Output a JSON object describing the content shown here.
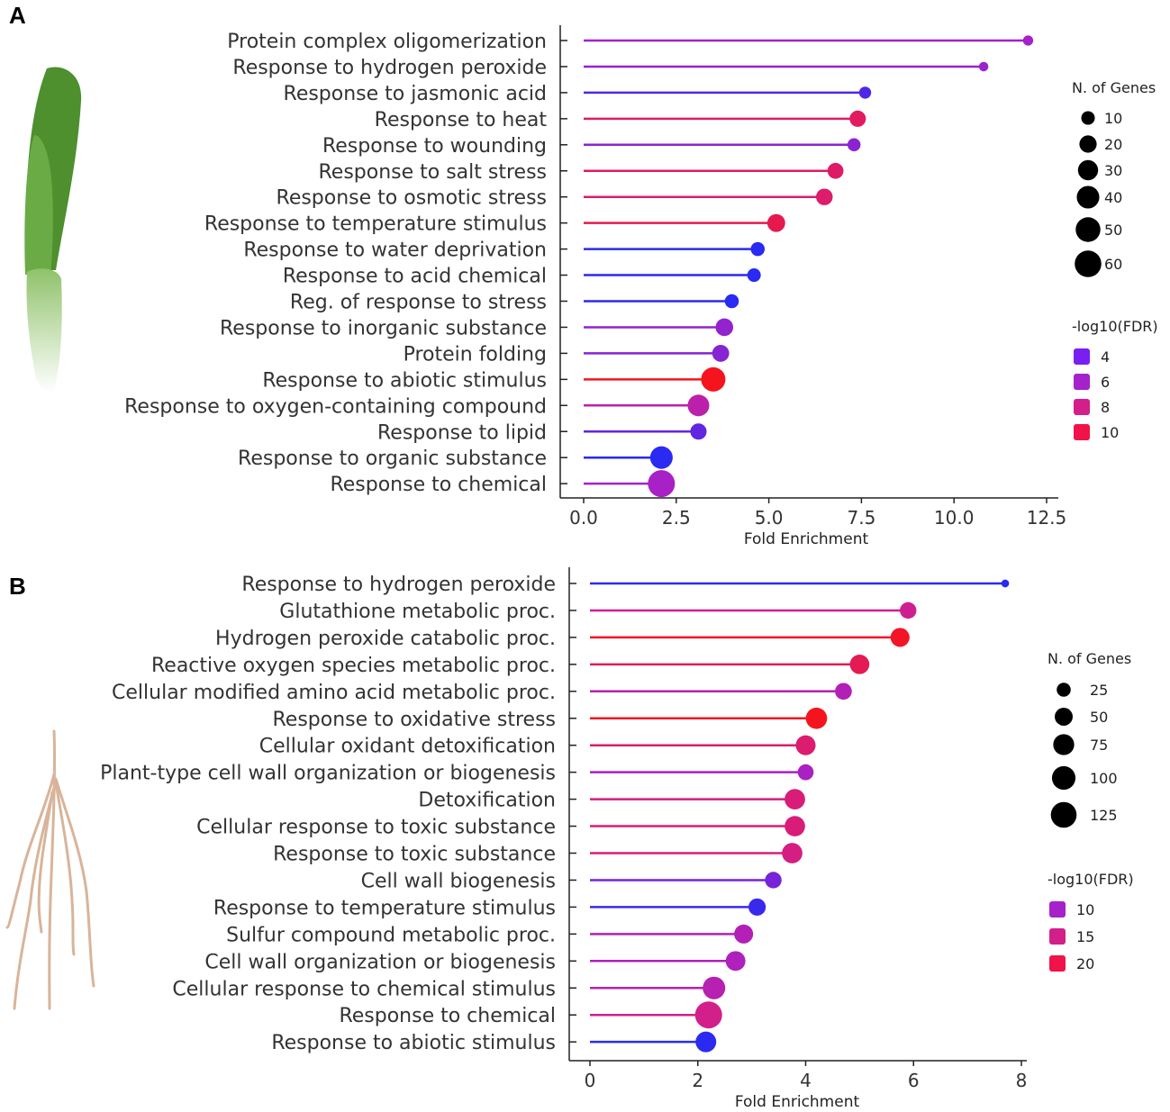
{
  "chart_data": [
    {
      "panel": "A",
      "type": "lollipop",
      "xlabel": "Fold Enrichment",
      "xticks": [
        "0.0",
        "2.5",
        "5.0",
        "7.5",
        "10.0",
        "12.5"
      ],
      "xtick_values": [
        0,
        2.5,
        5,
        7.5,
        10,
        12.5
      ],
      "xlim": [
        0,
        12.5
      ],
      "terms": [
        {
          "label": "Protein complex oligomerization",
          "value": 12.0,
          "genes": 4,
          "fdr": 6.0
        },
        {
          "label": "Response to hydrogen peroxide",
          "value": 10.8,
          "genes": 3,
          "fdr": 5.8
        },
        {
          "label": "Response to jasmonic acid",
          "value": 7.6,
          "genes": 7,
          "fdr": 4.6
        },
        {
          "label": "Response to heat",
          "value": 7.4,
          "genes": 17,
          "fdr": 9.0
        },
        {
          "label": "Response to wounding",
          "value": 7.3,
          "genes": 9,
          "fdr": 5.6
        },
        {
          "label": "Response to salt stress",
          "value": 6.8,
          "genes": 16,
          "fdr": 8.8
        },
        {
          "label": "Response to osmotic stress",
          "value": 6.5,
          "genes": 18,
          "fdr": 8.7
        },
        {
          "label": "Response to temperature stimulus",
          "value": 5.2,
          "genes": 22,
          "fdr": 9.4
        },
        {
          "label": "Response to water deprivation",
          "value": 4.7,
          "genes": 11,
          "fdr": 3.9
        },
        {
          "label": "Response to acid chemical",
          "value": 4.6,
          "genes": 10,
          "fdr": 3.8
        },
        {
          "label": "Reg. of response to stress",
          "value": 4.0,
          "genes": 11,
          "fdr": 3.6
        },
        {
          "label": "Response to inorganic substance",
          "value": 3.8,
          "genes": 21,
          "fdr": 5.7
        },
        {
          "label": "Protein folding",
          "value": 3.7,
          "genes": 19,
          "fdr": 5.5
        },
        {
          "label": "Response to abiotic stimulus",
          "value": 3.5,
          "genes": 48,
          "fdr": 10.6
        },
        {
          "label": "Response to oxygen-containing compound",
          "value": 3.1,
          "genes": 36,
          "fdr": 7.0
        },
        {
          "label": "Response to lipid",
          "value": 3.1,
          "genes": 17,
          "fdr": 4.9
        },
        {
          "label": "Response to organic substance",
          "value": 2.1,
          "genes": 40,
          "fdr": 2.5
        },
        {
          "label": "Response to chemical",
          "value": 2.1,
          "genes": 62,
          "fdr": 6.1
        }
      ],
      "size_legend": {
        "title": "N. of Genes",
        "values": [
          10,
          20,
          30,
          40,
          50,
          60
        ]
      },
      "color_legend": {
        "title": "-log10(FDR)",
        "entries": [
          {
            "label": "4",
            "color": "#7a1ff2"
          },
          {
            "label": "6",
            "color": "#a521c9"
          },
          {
            "label": "8",
            "color": "#d21f8a"
          },
          {
            "label": "10",
            "color": "#f1124a"
          }
        ]
      }
    },
    {
      "panel": "B",
      "type": "lollipop",
      "xlabel": "Fold Enrichment",
      "xticks": [
        "0",
        "2",
        "4",
        "6",
        "8"
      ],
      "xtick_values": [
        0,
        2,
        4,
        6,
        8
      ],
      "xlim": [
        0,
        8
      ],
      "terms": [
        {
          "label": "Response to hydrogen peroxide",
          "value": 7.7,
          "genes": 3,
          "fdr": 6.0
        },
        {
          "label": "Glutathione metabolic proc.",
          "value": 5.9,
          "genes": 40,
          "fdr": 14.5
        },
        {
          "label": "Hydrogen peroxide catabolic proc.",
          "value": 5.75,
          "genes": 58,
          "fdr": 20.5
        },
        {
          "label": "Reactive oxygen species metabolic proc.",
          "value": 5.0,
          "genes": 62,
          "fdr": 18.0
        },
        {
          "label": "Cellular modified amino acid metabolic proc.",
          "value": 4.7,
          "genes": 42,
          "fdr": 11.5
        },
        {
          "label": "Response to oxidative stress",
          "value": 4.2,
          "genes": 78,
          "fdr": 21.0
        },
        {
          "label": "Cellular oxidant detoxification",
          "value": 4.0,
          "genes": 65,
          "fdr": 16.5
        },
        {
          "label": "Plant-type cell wall organization or biogenesis",
          "value": 4.0,
          "genes": 36,
          "fdr": 10.5
        },
        {
          "label": "Detoxification",
          "value": 3.8,
          "genes": 70,
          "fdr": 16.0
        },
        {
          "label": "Cellular response to toxic substance",
          "value": 3.8,
          "genes": 70,
          "fdr": 16.0
        },
        {
          "label": "Response to toxic substance",
          "value": 3.75,
          "genes": 70,
          "fdr": 15.5
        },
        {
          "label": "Cell wall biogenesis",
          "value": 3.4,
          "genes": 40,
          "fdr": 8.5
        },
        {
          "label": "Response to temperature stimulus",
          "value": 3.1,
          "genes": 45,
          "fdr": 6.5
        },
        {
          "label": "Sulfur compound metabolic proc.",
          "value": 2.85,
          "genes": 58,
          "fdr": 11.5
        },
        {
          "label": "Cell wall organization or biogenesis",
          "value": 2.7,
          "genes": 64,
          "fdr": 11.0
        },
        {
          "label": "Cellular response to chemical stimulus",
          "value": 2.3,
          "genes": 90,
          "fdr": 12.0
        },
        {
          "label": "Response to chemical",
          "value": 2.2,
          "genes": 140,
          "fdr": 15.0
        },
        {
          "label": "Response to abiotic stimulus",
          "value": 2.15,
          "genes": 72,
          "fdr": 6.0
        }
      ],
      "size_legend": {
        "title": "N. of Genes",
        "values": [
          25,
          50,
          75,
          100,
          125
        ]
      },
      "color_legend": {
        "title": "-log10(FDR)",
        "entries": [
          {
            "label": "10",
            "color": "#a521c9"
          },
          {
            "label": "15",
            "color": "#d21f8a"
          },
          {
            "label": "20",
            "color": "#f1124a"
          }
        ]
      }
    }
  ],
  "panels": {
    "a_letter": "A",
    "b_letter": "B"
  },
  "illustrations": {
    "panel_a": "shoot-illustration",
    "panel_b": "root-illustration"
  }
}
